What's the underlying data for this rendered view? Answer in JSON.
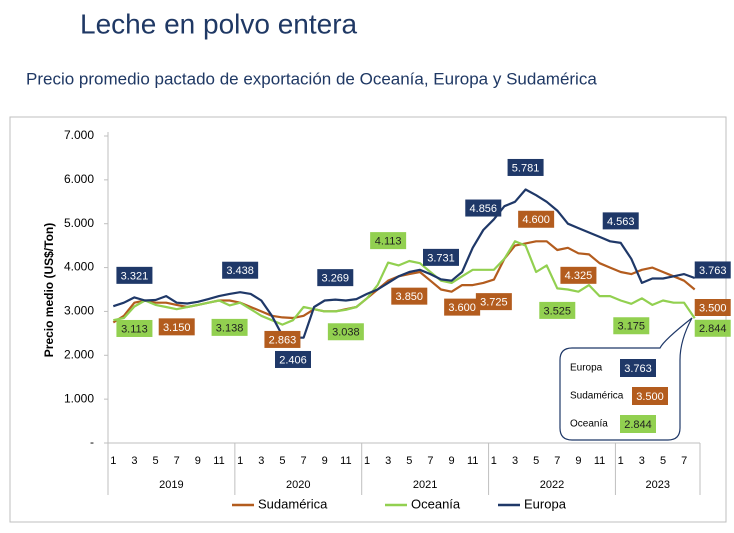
{
  "chart_data": {
    "type": "line",
    "title": "Leche en polvo entera",
    "subtitle": "Precio promedio pactado de exportación de Oceanía, Europa y Sudamérica",
    "y_label": "Precio medio (US$/Ton)",
    "categories": [
      "1",
      null,
      "3",
      null,
      "5",
      null,
      "7",
      null,
      "9",
      null,
      "11",
      null,
      "1",
      null,
      "3",
      null,
      "5",
      null,
      "7",
      null,
      "9",
      null,
      "11",
      null,
      "1",
      null,
      "3",
      null,
      "5",
      null,
      "7",
      null,
      "9",
      null,
      "11",
      null,
      "1",
      null,
      "3",
      null,
      "5",
      null,
      "7",
      null,
      "9",
      null,
      "11",
      null,
      "1",
      null,
      "3",
      null,
      "5",
      null,
      "7",
      null
    ],
    "year_groups": [
      "2019",
      "2020",
      "2021",
      "2022",
      "2023"
    ],
    "ylim": [
      0,
      7000
    ],
    "yticks": [
      {
        "value": 0,
        "label": "-"
      },
      {
        "value": 1000,
        "label": "1.000"
      },
      {
        "value": 2000,
        "label": "2.000"
      },
      {
        "value": 3000,
        "label": "3.000"
      },
      {
        "value": 4000,
        "label": "4.000"
      },
      {
        "value": 5000,
        "label": "5.000"
      },
      {
        "value": 6000,
        "label": "6.000"
      },
      {
        "value": 7000,
        "label": "7.000"
      }
    ],
    "grid": false,
    "legend": "bottom",
    "series": [
      {
        "name": "Sudamérica",
        "color": "#b35c1e",
        "values": [
          2750,
          2900,
          3200,
          3250,
          3200,
          3200,
          3150,
          3100,
          3150,
          3200,
          3250,
          3250,
          3200,
          3100,
          3000,
          2900,
          2863,
          2850,
          2900,
          3050,
          3000,
          3000,
          3050,
          3100,
          3300,
          3500,
          3700,
          3800,
          3850,
          3900,
          3700,
          3500,
          3450,
          3600,
          3600,
          3650,
          3725,
          4200,
          4500,
          4550,
          4600,
          4600,
          4400,
          4450,
          4325,
          4300,
          4100,
          4000,
          3900,
          3850,
          3950,
          4000,
          3900,
          3800,
          3700,
          3500
        ],
        "value_labels": [
          null,
          null,
          null,
          null,
          null,
          null,
          "3.150",
          null,
          null,
          null,
          null,
          null,
          null,
          null,
          null,
          null,
          "2.863",
          null,
          null,
          null,
          null,
          null,
          null,
          null,
          null,
          null,
          null,
          null,
          "3.850",
          null,
          null,
          null,
          null,
          "3.600",
          null,
          null,
          "3.725",
          null,
          null,
          null,
          "4.600",
          null,
          null,
          null,
          "4.325",
          null,
          null,
          null,
          null,
          null,
          null,
          null,
          null,
          null,
          null,
          "3.500"
        ]
      },
      {
        "name": "Oceanía",
        "color": "#92d050",
        "values": [
          2800,
          2850,
          3113,
          3250,
          3150,
          3100,
          3050,
          3100,
          3150,
          3200,
          3250,
          3138,
          3200,
          3050,
          2900,
          2800,
          2700,
          2800,
          3100,
          3050,
          3000,
          3000,
          3038,
          3100,
          3300,
          3600,
          4113,
          4050,
          4150,
          4100,
          3900,
          3700,
          3650,
          3800,
          3950,
          3950,
          3950,
          4200,
          4600,
          4500,
          3900,
          4050,
          3525,
          3500,
          3450,
          3600,
          3350,
          3350,
          3250,
          3175,
          3300,
          3150,
          3250,
          3200,
          3200,
          2844
        ],
        "value_labels": [
          null,
          null,
          "3.113",
          null,
          null,
          null,
          null,
          null,
          null,
          null,
          null,
          "3.138",
          null,
          null,
          null,
          null,
          null,
          null,
          null,
          null,
          null,
          null,
          "3.038",
          null,
          null,
          null,
          "4.113",
          null,
          null,
          null,
          null,
          null,
          null,
          null,
          null,
          null,
          null,
          null,
          null,
          null,
          null,
          null,
          "3.525",
          null,
          null,
          null,
          null,
          null,
          null,
          "3.175",
          null,
          null,
          null,
          null,
          null,
          "2.844"
        ]
      },
      {
        "name": "Europa",
        "color": "#1f3868",
        "values": [
          3120,
          3200,
          3321,
          3250,
          3260,
          3350,
          3200,
          3180,
          3220,
          3280,
          3350,
          3400,
          3438,
          3400,
          3250,
          2900,
          2450,
          2406,
          2400,
          3100,
          3250,
          3269,
          3250,
          3280,
          3400,
          3500,
          3650,
          3800,
          3900,
          3950,
          3850,
          3731,
          3700,
          3900,
          4450,
          4856,
          5100,
          5400,
          5500,
          5781,
          5650,
          5500,
          5300,
          5000,
          4900,
          4800,
          4700,
          4600,
          4563,
          4200,
          3650,
          3750,
          3750,
          3800,
          3850,
          3763
        ],
        "value_labels": [
          null,
          null,
          "3.321",
          null,
          null,
          null,
          null,
          null,
          null,
          null,
          null,
          null,
          "3.438",
          null,
          null,
          null,
          null,
          "2.406",
          null,
          null,
          null,
          "3.269",
          null,
          null,
          null,
          null,
          null,
          null,
          null,
          null,
          null,
          "3.731",
          null,
          null,
          null,
          "4.856",
          null,
          null,
          null,
          "5.781",
          null,
          null,
          null,
          null,
          null,
          null,
          null,
          null,
          "4.563",
          null,
          null,
          null,
          null,
          null,
          null,
          "3.763"
        ]
      }
    ],
    "callout": [
      {
        "name": "Europa",
        "label": "3.763"
      },
      {
        "name": "Sudamérica",
        "label": "3.500"
      },
      {
        "name": "Oceanía",
        "label": "2.844"
      }
    ]
  }
}
